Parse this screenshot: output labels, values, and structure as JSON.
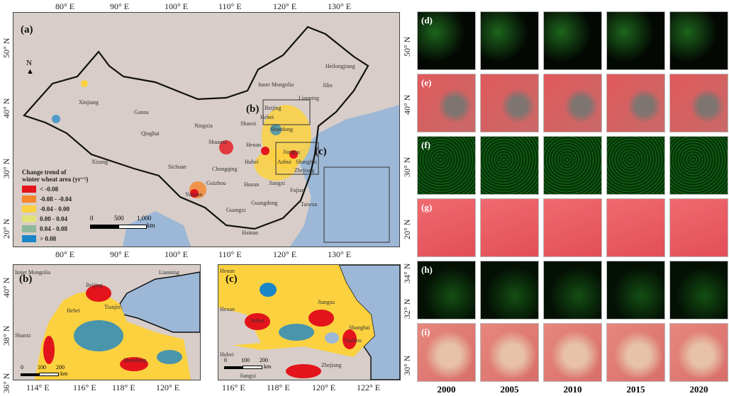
{
  "panel_a": {
    "label": "(a)",
    "lon_ticks": [
      "80° E",
      "90° E",
      "100° E",
      "110° E",
      "120° E",
      "130° E"
    ],
    "lat_ticks": [
      "50° N",
      "40° N",
      "30° N",
      "20° N"
    ],
    "north_arrow": "N",
    "inset_labels": [
      "(b)",
      "(c)"
    ],
    "provinces": [
      "Xinjiang",
      "Gansu",
      "Qinghai",
      "Xizang",
      "Ningxia",
      "Shaanxi",
      "Sichuan",
      "Chongqing",
      "Guizhou",
      "Yunnan",
      "Guangxi",
      "Hunan",
      "Hubei",
      "Henan",
      "Shanxi",
      "Hebei",
      "Beijing",
      "Shandong",
      "Jiangsu",
      "Anhui",
      "Shanghai",
      "Zhejiang",
      "Jiangxi",
      "Fujian",
      "Guangdong",
      "Hainan",
      "Taiwan",
      "Inner Mongolia",
      "Heilongjiang",
      "Jilin",
      "Liaoning"
    ],
    "legend": {
      "title_line1": "Change trend of",
      "title_line2": "winter wheat area (yr⁻¹)",
      "items": [
        {
          "label": "< -0.08",
          "color": "#e3141b"
        },
        {
          "label": "-0.08 - -0.04",
          "color": "#f5862b"
        },
        {
          "label": "-0.04 - 0.00",
          "color": "#fcd13f"
        },
        {
          "label": "0.00 - 0.04",
          "color": "#e2e27a"
        },
        {
          "label": "0.04 - 0.08",
          "color": "#8fb89a"
        },
        {
          "label": "> 0.08",
          "color": "#1a86c8"
        }
      ]
    },
    "scale": {
      "ticks": [
        "0",
        "500",
        "1,000"
      ],
      "unit": "km"
    }
  },
  "panel_b": {
    "label": "(b)",
    "lon_ticks": [
      "114° E",
      "116° E",
      "118° E",
      "120° E"
    ],
    "lat_ticks": [
      "40° N",
      "38° N",
      "36° N"
    ],
    "provinces": [
      "Inner Mongolia",
      "Liaoning",
      "Beijing",
      "Hebei",
      "Tianjin",
      "Shanxi",
      "Shandong"
    ],
    "scale": {
      "ticks": [
        "0",
        "100",
        "200"
      ],
      "unit": "km"
    }
  },
  "panel_c": {
    "label": "(c)",
    "lon_ticks": [
      "116° E",
      "118° E",
      "120° E",
      "122° E"
    ],
    "provinces": [
      "Henan",
      "Henan",
      "Jiangsu",
      "Anhui",
      "Shanghai",
      "Suzhou",
      "Hubei",
      "Zhejiang",
      "Jiangxi"
    ],
    "scale": {
      "ticks": [
        "0",
        "100",
        "200"
      ],
      "unit": "km"
    }
  },
  "panel_right": {
    "row_labels": [
      "(d)",
      "(e)",
      "(f)",
      "(g)",
      "(h)",
      "(i)"
    ],
    "lat_ticks": [
      "50° N",
      "40° N",
      "30° N",
      "20° N",
      "34° N",
      "32° N",
      "30° N"
    ],
    "years": [
      "2000",
      "2005",
      "2010",
      "2015",
      "2020"
    ]
  },
  "colors": {
    "sea": "#9db8d6",
    "land": "#d8cdc8"
  }
}
